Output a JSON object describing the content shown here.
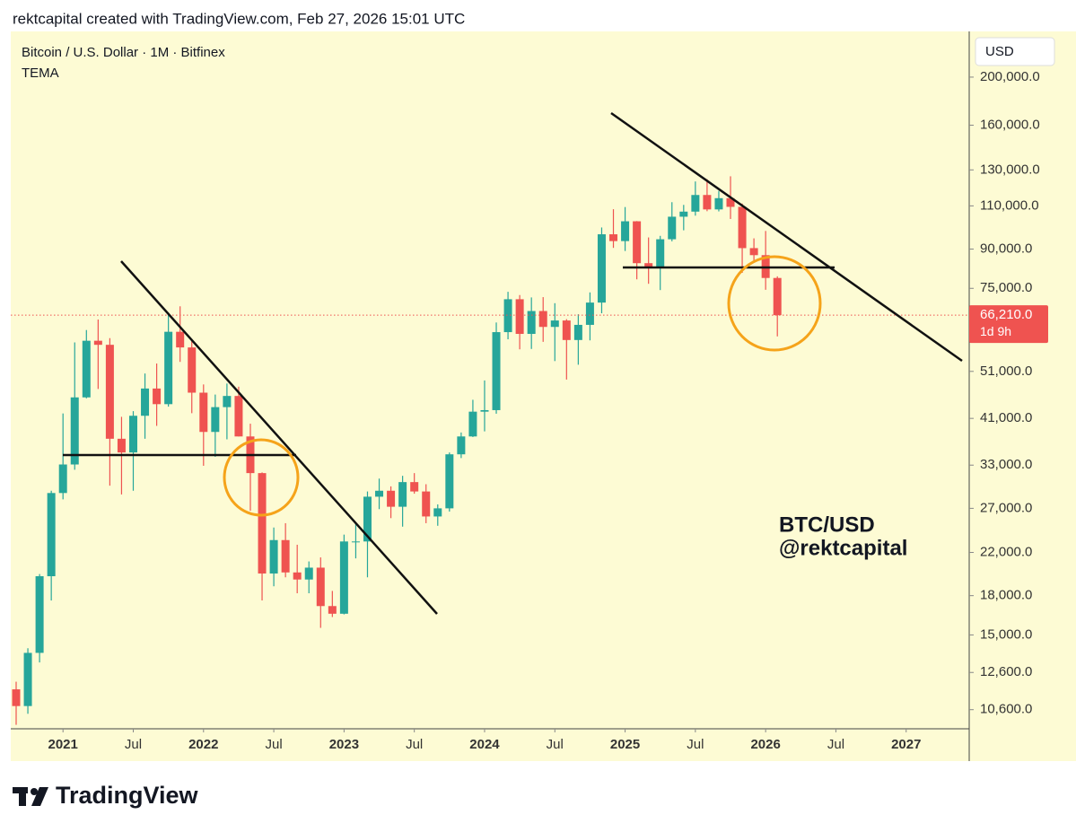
{
  "header": {
    "credit": "rektcapital created with TradingView.com, Feb 27, 2026 15:01 UTC"
  },
  "chart_data": {
    "type": "candlestick",
    "title": "Bitcoin / U.S. Dollar · 1M · Bitfinex",
    "indicator": "TEMA",
    "currency": "USD",
    "log_scale": true,
    "up_color": "#26a69a",
    "down_color": "#ef5350",
    "x": [
      "2020-09",
      "2020-10",
      "2020-11",
      "2020-12",
      "2021-01",
      "2021-02",
      "2021-03",
      "2021-04",
      "2021-05",
      "2021-06",
      "2021-07",
      "2021-08",
      "2021-09",
      "2021-10",
      "2021-11",
      "2021-12",
      "2022-01",
      "2022-02",
      "2022-03",
      "2022-04",
      "2022-05",
      "2022-06",
      "2022-07",
      "2022-08",
      "2022-09",
      "2022-10",
      "2022-11",
      "2022-12",
      "2023-01",
      "2023-02",
      "2023-03",
      "2023-04",
      "2023-05",
      "2023-06",
      "2023-07",
      "2023-08",
      "2023-09",
      "2023-10",
      "2023-11",
      "2023-12",
      "2024-01",
      "2024-02",
      "2024-03",
      "2024-04",
      "2024-05",
      "2024-06",
      "2024-07",
      "2024-08",
      "2024-09",
      "2024-10",
      "2024-11",
      "2024-12",
      "2025-01",
      "2025-02",
      "2025-03",
      "2025-04",
      "2025-05",
      "2025-06",
      "2025-07",
      "2025-08",
      "2025-09",
      "2025-10",
      "2025-11",
      "2025-12",
      "2026-01",
      "2026-02"
    ],
    "open": [
      11650,
      10780,
      13800,
      19700,
      28990,
      33100,
      45200,
      58800,
      57700,
      37300,
      35000,
      41500,
      47100,
      43800,
      61300,
      57000,
      46200,
      38500,
      43200,
      45500,
      37700,
      31800,
      19950,
      23300,
      20050,
      19400,
      20500,
      17150,
      16550,
      23150,
      23150,
      28500,
      29300,
      27200,
      30500,
      29200,
      26000,
      27000,
      34700,
      37700,
      42300,
      42600,
      61200,
      71300,
      60700,
      67500,
      62700,
      64600,
      59000,
      63300,
      70200,
      96400,
      93400,
      102400,
      84300,
      82500,
      94200,
      104600,
      107100,
      115700,
      108200,
      114000,
      109500,
      90400,
      87500,
      78700
    ],
    "high": [
      12070,
      14100,
      19900,
      29300,
      41950,
      58350,
      61800,
      64900,
      59500,
      41300,
      42400,
      50500,
      52900,
      67000,
      69000,
      59100,
      48000,
      45800,
      48200,
      47500,
      40000,
      31900,
      24700,
      25200,
      22800,
      21100,
      21500,
      18400,
      23900,
      25300,
      29200,
      31000,
      29900,
      31400,
      31800,
      30200,
      27500,
      35000,
      38400,
      44700,
      48900,
      64000,
      73800,
      72700,
      71900,
      72000,
      70000,
      65000,
      66500,
      73600,
      99500,
      108300,
      109400,
      102500,
      95000,
      95700,
      111900,
      110500,
      123200,
      124500,
      117900,
      126200,
      111200,
      94600,
      97900,
      79300
    ],
    "low": [
      9880,
      10400,
      13200,
      17600,
      28150,
      32300,
      45000,
      47000,
      30000,
      28800,
      29300,
      37300,
      39600,
      43300,
      53300,
      42000,
      32900,
      34300,
      37200,
      37700,
      26700,
      17600,
      18800,
      19600,
      18200,
      18200,
      15500,
      16300,
      16500,
      21400,
      19600,
      26900,
      25800,
      24800,
      28900,
      25200,
      24900,
      26600,
      34100,
      37600,
      38600,
      41900,
      59200,
      56500,
      56600,
      58500,
      53500,
      49100,
      52600,
      58900,
      66800,
      90500,
      89200,
      78200,
      76600,
      74400,
      93300,
      98200,
      105100,
      107300,
      107200,
      103500,
      80600,
      84400,
      74500,
      60000
    ],
    "close": [
      10780,
      13800,
      19700,
      28990,
      33100,
      45200,
      58800,
      57700,
      37300,
      35000,
      41500,
      47100,
      43800,
      61300,
      57000,
      46200,
      38500,
      43200,
      45500,
      37700,
      31800,
      19950,
      23300,
      20050,
      19400,
      20500,
      17150,
      16550,
      23150,
      23150,
      28500,
      29300,
      27200,
      30500,
      29200,
      26000,
      27000,
      34700,
      37700,
      42300,
      42600,
      61200,
      71300,
      60700,
      67500,
      62700,
      64600,
      59000,
      63300,
      70200,
      96400,
      93400,
      102400,
      84300,
      82500,
      94200,
      104600,
      107100,
      115700,
      108200,
      114000,
      109500,
      90400,
      87500,
      78700,
      66210
    ],
    "last_price_label": "66,210.0",
    "countdown": "1d 9h",
    "xlim": [
      "2020-09",
      "2027-06"
    ],
    "xticks": [
      {
        "value": "2021-01",
        "label": "2021"
      },
      {
        "value": "2021-07",
        "label": "Jul"
      },
      {
        "value": "2022-01",
        "label": "2022"
      },
      {
        "value": "2022-07",
        "label": "Jul"
      },
      {
        "value": "2023-01",
        "label": "2023"
      },
      {
        "value": "2023-07",
        "label": "Jul"
      },
      {
        "value": "2024-01",
        "label": "2024"
      },
      {
        "value": "2024-07",
        "label": "Jul"
      },
      {
        "value": "2025-01",
        "label": "2025"
      },
      {
        "value": "2025-07",
        "label": "Jul"
      },
      {
        "value": "2026-01",
        "label": "2026"
      },
      {
        "value": "2026-07",
        "label": "Jul"
      },
      {
        "value": "2027-01",
        "label": "2027"
      }
    ],
    "ylim": [
      9700,
      247300
    ],
    "yticks": [
      {
        "value": 200000,
        "label": "200,000.0"
      },
      {
        "value": 160000,
        "label": "160,000.0"
      },
      {
        "value": 130000,
        "label": "130,000.0"
      },
      {
        "value": 110000,
        "label": "110,000.0"
      },
      {
        "value": 90000,
        "label": "90,000.0"
      },
      {
        "value": 75000,
        "label": "75,000.0"
      },
      {
        "value": 51000,
        "label": "51,000.0"
      },
      {
        "value": 41000,
        "label": "41,000.0"
      },
      {
        "value": 33000,
        "label": "33,000.0"
      },
      {
        "value": 27000,
        "label": "27,000.0"
      },
      {
        "value": 22000,
        "label": "22,000.0"
      },
      {
        "value": 18000,
        "label": "18,000.0"
      },
      {
        "value": 15000,
        "label": "15,000.0"
      },
      {
        "value": 12600,
        "label": "12,600.0"
      },
      {
        "value": 10600,
        "label": "10,600.0"
      }
    ],
    "watermark": [
      "BTC/USD",
      "@rektcapital"
    ]
  },
  "footer": {
    "brand": "TradingView"
  }
}
